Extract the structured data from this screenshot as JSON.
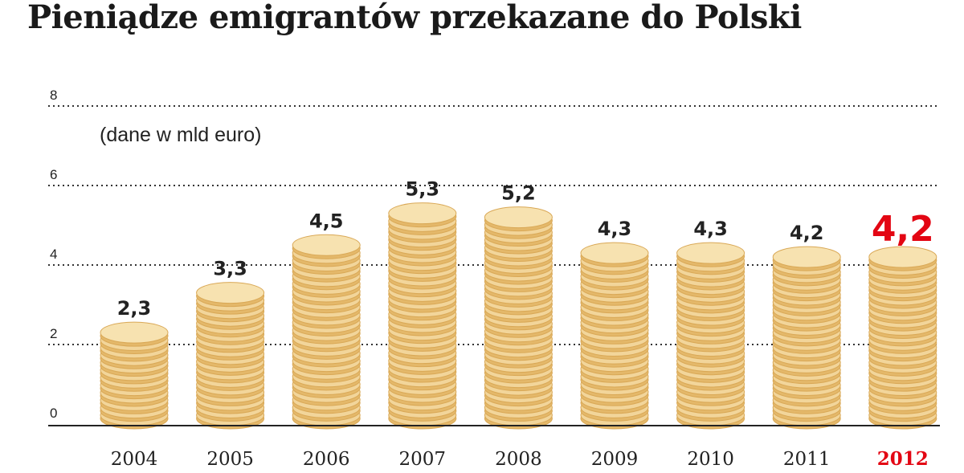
{
  "title": "Pieniądze emigrantów przekazane do Polski",
  "colors": {
    "grid": "#333333",
    "axis": "#222222",
    "text": "#222222",
    "highlight": "#e30613",
    "coin_face": "#f2d59a",
    "coin_edge": "#e4b86a",
    "coin_outline": "#d9a856"
  },
  "chart_data": {
    "type": "bar",
    "subtitle": "(dane w mld euro)",
    "categories": [
      "2004",
      "2005",
      "2006",
      "2007",
      "2008",
      "2009",
      "2010",
      "2011",
      "2012"
    ],
    "values": [
      2.3,
      3.3,
      4.5,
      5.3,
      5.2,
      4.3,
      4.3,
      4.2,
      4.2
    ],
    "value_labels": [
      "2,3",
      "3,3",
      "4,5",
      "5,3",
      "5,2",
      "4,3",
      "4,3",
      "4,2",
      "4,2"
    ],
    "highlight_category": "2012",
    "y_ticks": [
      0,
      2,
      4,
      6,
      8
    ],
    "ylim": [
      0,
      8
    ],
    "grid": true,
    "xlabel": "",
    "ylabel": ""
  }
}
